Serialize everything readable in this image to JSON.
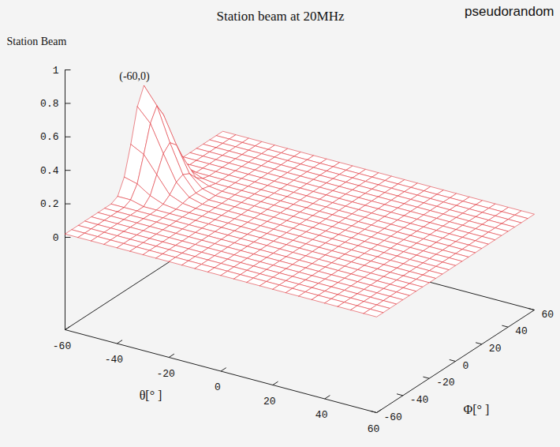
{
  "chart_data": {
    "type": "surface",
    "title": "Station beam at 20MHz",
    "zlabel": "Station Beam",
    "xlabel": "θ[° ]",
    "ylabel": "Φ[° ]",
    "inset_label": "pseudorandom",
    "annotations": [
      {
        "text": "(-60,0)",
        "x": -60,
        "y": 0
      }
    ],
    "color": "#e0383e",
    "xlim": [
      -60,
      60
    ],
    "xticks": [
      -60,
      -40,
      -20,
      0,
      20,
      40,
      60
    ],
    "ylim": [
      -60,
      60
    ],
    "yticks": [
      -60,
      -40,
      -20,
      0,
      20,
      40,
      60
    ],
    "zlim": [
      0,
      1
    ],
    "zticks": [
      0,
      0.2,
      0.4,
      0.6,
      0.8,
      1
    ],
    "x": [
      -60,
      -55,
      -50,
      -45,
      -40,
      -35,
      -30,
      -25,
      -20,
      -15,
      -10,
      -5,
      0,
      5,
      10,
      15,
      20,
      25,
      30,
      35,
      40,
      45,
      50,
      55,
      60
    ],
    "y": [
      -60,
      -55,
      -50,
      -45,
      -40,
      -35,
      -30,
      -25,
      -20,
      -15,
      -10,
      -5,
      0,
      5,
      10,
      15,
      20,
      25,
      30,
      35,
      40,
      45,
      50,
      55,
      60
    ],
    "z": [
      [
        0.02,
        0.02,
        0.02,
        0.02,
        0.02,
        0.02,
        0.02,
        0.02,
        0.04,
        0.13,
        0.3,
        0.5,
        0.6,
        0.5,
        0.3,
        0.13,
        0.04,
        0.02,
        0.02,
        0.02,
        0.02,
        0.02,
        0.02,
        0.02,
        0.02
      ],
      [
        0.02,
        0.02,
        0.02,
        0.02,
        0.02,
        0.02,
        0.02,
        0.02,
        0.04,
        0.11,
        0.26,
        0.42,
        0.5,
        0.42,
        0.26,
        0.11,
        0.04,
        0.02,
        0.02,
        0.02,
        0.02,
        0.02,
        0.02,
        0.02,
        0.02
      ],
      [
        0.02,
        0.02,
        0.02,
        0.02,
        0.02,
        0.02,
        0.02,
        0.02,
        0.02,
        0.06,
        0.16,
        0.26,
        0.3,
        0.26,
        0.16,
        0.06,
        0.02,
        0.02,
        0.02,
        0.02,
        0.02,
        0.02,
        0.02,
        0.02,
        0.02
      ],
      [
        0.02,
        0.02,
        0.02,
        0.02,
        0.02,
        0.02,
        0.02,
        0.02,
        0.02,
        0.03,
        0.06,
        0.11,
        0.13,
        0.11,
        0.06,
        0.03,
        0.02,
        0.02,
        0.02,
        0.02,
        0.02,
        0.02,
        0.02,
        0.02,
        0.02
      ],
      [
        0.02,
        0.02,
        0.02,
        0.02,
        0.02,
        0.02,
        0.02,
        0.02,
        0.02,
        0.02,
        0.03,
        0.04,
        0.04,
        0.04,
        0.03,
        0.02,
        0.02,
        0.02,
        0.02,
        0.02,
        0.02,
        0.02,
        0.02,
        0.02,
        0.02
      ],
      [
        0.02,
        0.02,
        0.02,
        0.02,
        0.02,
        0.02,
        0.02,
        0.02,
        0.02,
        0.02,
        0.02,
        0.02,
        0.02,
        0.02,
        0.02,
        0.02,
        0.02,
        0.02,
        0.02,
        0.02,
        0.02,
        0.02,
        0.02,
        0.02,
        0.02
      ],
      [
        0.02,
        0.02,
        0.02,
        0.02,
        0.02,
        0.02,
        0.02,
        0.02,
        0.02,
        0.02,
        0.02,
        0.02,
        0.02,
        0.02,
        0.02,
        0.02,
        0.02,
        0.02,
        0.02,
        0.02,
        0.02,
        0.02,
        0.02,
        0.02,
        0.02
      ],
      [
        0.02,
        0.02,
        0.02,
        0.02,
        0.02,
        0.02,
        0.02,
        0.02,
        0.02,
        0.02,
        0.02,
        0.02,
        0.02,
        0.02,
        0.02,
        0.02,
        0.02,
        0.02,
        0.02,
        0.02,
        0.02,
        0.02,
        0.02,
        0.02,
        0.02
      ],
      [
        0.02,
        0.02,
        0.02,
        0.02,
        0.02,
        0.02,
        0.02,
        0.02,
        0.02,
        0.02,
        0.02,
        0.02,
        0.02,
        0.02,
        0.02,
        0.02,
        0.02,
        0.02,
        0.02,
        0.02,
        0.02,
        0.02,
        0.02,
        0.02,
        0.02
      ],
      [
        0.02,
        0.02,
        0.02,
        0.02,
        0.02,
        0.02,
        0.02,
        0.02,
        0.02,
        0.02,
        0.02,
        0.02,
        0.02,
        0.02,
        0.02,
        0.02,
        0.02,
        0.02,
        0.02,
        0.02,
        0.02,
        0.02,
        0.02,
        0.02,
        0.02
      ],
      [
        0.02,
        0.02,
        0.02,
        0.02,
        0.02,
        0.02,
        0.02,
        0.02,
        0.02,
        0.02,
        0.02,
        0.02,
        0.02,
        0.02,
        0.02,
        0.02,
        0.02,
        0.02,
        0.02,
        0.02,
        0.02,
        0.02,
        0.02,
        0.02,
        0.02
      ],
      [
        0.02,
        0.02,
        0.02,
        0.02,
        0.02,
        0.02,
        0.02,
        0.02,
        0.02,
        0.02,
        0.02,
        0.02,
        0.02,
        0.02,
        0.02,
        0.02,
        0.02,
        0.02,
        0.02,
        0.02,
        0.02,
        0.02,
        0.02,
        0.02,
        0.02
      ],
      [
        0.02,
        0.02,
        0.02,
        0.02,
        0.02,
        0.02,
        0.02,
        0.02,
        0.02,
        0.02,
        0.02,
        0.02,
        0.02,
        0.02,
        0.02,
        0.02,
        0.02,
        0.02,
        0.02,
        0.02,
        0.02,
        0.02,
        0.02,
        0.02,
        0.02
      ],
      [
        0.02,
        0.02,
        0.02,
        0.02,
        0.02,
        0.02,
        0.02,
        0.02,
        0.02,
        0.02,
        0.02,
        0.02,
        0.02,
        0.02,
        0.02,
        0.02,
        0.02,
        0.02,
        0.02,
        0.02,
        0.02,
        0.02,
        0.02,
        0.02,
        0.02
      ],
      [
        0.02,
        0.02,
        0.02,
        0.02,
        0.02,
        0.02,
        0.02,
        0.02,
        0.02,
        0.02,
        0.02,
        0.02,
        0.02,
        0.02,
        0.02,
        0.02,
        0.02,
        0.02,
        0.02,
        0.02,
        0.02,
        0.02,
        0.02,
        0.02,
        0.02
      ],
      [
        0.02,
        0.02,
        0.02,
        0.02,
        0.02,
        0.02,
        0.02,
        0.02,
        0.02,
        0.02,
        0.02,
        0.02,
        0.02,
        0.02,
        0.02,
        0.02,
        0.02,
        0.02,
        0.02,
        0.02,
        0.02,
        0.02,
        0.02,
        0.02,
        0.02
      ],
      [
        0.02,
        0.02,
        0.02,
        0.02,
        0.02,
        0.02,
        0.02,
        0.02,
        0.02,
        0.02,
        0.02,
        0.02,
        0.02,
        0.02,
        0.02,
        0.02,
        0.02,
        0.02,
        0.02,
        0.02,
        0.02,
        0.02,
        0.02,
        0.02,
        0.02
      ],
      [
        0.02,
        0.02,
        0.02,
        0.02,
        0.02,
        0.02,
        0.02,
        0.02,
        0.02,
        0.02,
        0.02,
        0.02,
        0.02,
        0.02,
        0.02,
        0.02,
        0.02,
        0.02,
        0.02,
        0.02,
        0.02,
        0.02,
        0.02,
        0.02,
        0.02
      ],
      [
        0.02,
        0.02,
        0.02,
        0.02,
        0.02,
        0.02,
        0.02,
        0.02,
        0.02,
        0.02,
        0.02,
        0.02,
        0.02,
        0.02,
        0.02,
        0.02,
        0.02,
        0.02,
        0.02,
        0.02,
        0.02,
        0.02,
        0.02,
        0.02,
        0.02
      ],
      [
        0.02,
        0.02,
        0.02,
        0.02,
        0.02,
        0.02,
        0.02,
        0.02,
        0.02,
        0.02,
        0.02,
        0.02,
        0.02,
        0.02,
        0.02,
        0.02,
        0.02,
        0.02,
        0.02,
        0.02,
        0.02,
        0.02,
        0.02,
        0.02,
        0.02
      ],
      [
        0.02,
        0.02,
        0.02,
        0.02,
        0.02,
        0.02,
        0.02,
        0.02,
        0.02,
        0.02,
        0.02,
        0.02,
        0.02,
        0.02,
        0.02,
        0.02,
        0.02,
        0.02,
        0.02,
        0.02,
        0.02,
        0.02,
        0.02,
        0.02,
        0.02
      ],
      [
        0.02,
        0.02,
        0.02,
        0.02,
        0.02,
        0.02,
        0.02,
        0.02,
        0.02,
        0.02,
        0.02,
        0.02,
        0.02,
        0.02,
        0.02,
        0.02,
        0.02,
        0.02,
        0.02,
        0.02,
        0.02,
        0.02,
        0.02,
        0.02,
        0.02
      ],
      [
        0.02,
        0.02,
        0.02,
        0.02,
        0.02,
        0.02,
        0.02,
        0.02,
        0.02,
        0.02,
        0.02,
        0.02,
        0.02,
        0.02,
        0.02,
        0.02,
        0.02,
        0.02,
        0.02,
        0.02,
        0.02,
        0.02,
        0.02,
        0.02,
        0.02
      ],
      [
        0.02,
        0.02,
        0.02,
        0.02,
        0.02,
        0.02,
        0.02,
        0.02,
        0.02,
        0.02,
        0.02,
        0.02,
        0.02,
        0.02,
        0.02,
        0.02,
        0.02,
        0.02,
        0.02,
        0.02,
        0.02,
        0.02,
        0.02,
        0.02,
        0.02
      ],
      [
        0.02,
        0.02,
        0.02,
        0.02,
        0.02,
        0.02,
        0.02,
        0.02,
        0.02,
        0.02,
        0.02,
        0.02,
        0.02,
        0.02,
        0.02,
        0.02,
        0.02,
        0.02,
        0.02,
        0.02,
        0.02,
        0.02,
        0.02,
        0.02,
        0.02
      ]
    ]
  }
}
